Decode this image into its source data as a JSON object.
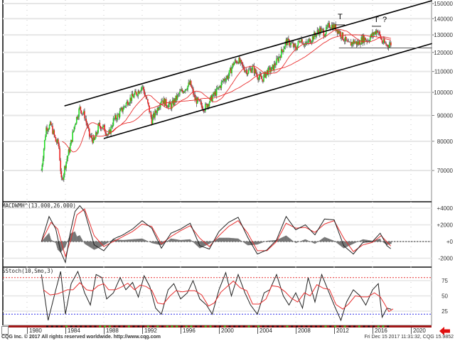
{
  "chart_data": [
    {
      "type": "candlestick",
      "pane": "price",
      "title": "",
      "yscale": "log",
      "y_ticks": [
        150000,
        140000,
        130000,
        120000,
        110000,
        100000,
        90000,
        80000,
        70000
      ],
      "y_tick_labels": [
        "150000",
        "140000",
        "130000",
        "120000",
        "110000",
        "100000",
        "90000",
        "80000",
        "70000"
      ],
      "ylim": [
        62000,
        152000
      ],
      "x_ticks": [
        1980,
        1984,
        1988,
        1992,
        1996,
        2000,
        2004,
        2008,
        2012,
        2016,
        2020
      ],
      "xlim": [
        1977.3,
        2022.2
      ],
      "grid": true,
      "approx_close_series": {
        "x": [
          1981.5,
          1982.0,
          1982.5,
          1983.0,
          1983.3,
          1983.6,
          1984.0,
          1984.5,
          1985.0,
          1985.5,
          1986.0,
          1986.5,
          1987.0,
          1987.5,
          1988.0,
          1988.5,
          1989.0,
          1989.5,
          1990.0,
          1990.5,
          1991.0,
          1991.5,
          1992.0,
          1992.5,
          1993.0,
          1993.5,
          1994.0,
          1994.5,
          1995.0,
          1995.5,
          1996.0,
          1996.5,
          1997.0,
          1997.5,
          1998.0,
          1998.5,
          1999.0,
          1999.5,
          2000.0,
          2000.5,
          2001.0,
          2001.5,
          2002.0,
          2002.5,
          2003.0,
          2003.5,
          2004.0,
          2004.5,
          2005.0,
          2005.5,
          2006.0,
          2006.5,
          2007.0,
          2007.5,
          2008.0,
          2008.5,
          2009.0,
          2009.5,
          2010.0,
          2010.5,
          2011.0,
          2011.5,
          2012.0,
          2012.5,
          2013.0,
          2013.5,
          2014.0,
          2014.5,
          2015.0,
          2015.5,
          2016.0,
          2016.5,
          2017.0,
          2017.5,
          2017.95
        ],
        "values": [
          70000,
          85000,
          86000,
          80000,
          79000,
          66000,
          72000,
          78000,
          87000,
          93000,
          90000,
          82000,
          80000,
          86000,
          85000,
          82000,
          88000,
          90000,
          93000,
          96000,
          98000,
          100000,
          103000,
          96000,
          88000,
          92000,
          97000,
          95000,
          94000,
          97000,
          100000,
          102000,
          104000,
          97000,
          95000,
          93000,
          96000,
          99000,
          102000,
          106000,
          108000,
          114000,
          116000,
          112000,
          110000,
          112000,
          108000,
          106000,
          110000,
          111000,
          115000,
          120000,
          126000,
          125000,
          122000,
          128000,
          124000,
          127000,
          130000,
          133000,
          131000,
          136000,
          135000,
          132000,
          128000,
          124000,
          126000,
          125000,
          128000,
          127000,
          130000,
          133000,
          126000,
          124000,
          125000
        ]
      },
      "moving_averages": [
        {
          "name": "MA short (red)",
          "color": "#e83030"
        },
        {
          "name": "MA long (red)",
          "color": "#e83030"
        }
      ],
      "annotations": [
        {
          "type": "trendline",
          "label": "channel-upper",
          "from": [
            1983.9,
            94000
          ],
          "to": [
            2022.2,
            152000
          ]
        },
        {
          "type": "trendline",
          "label": "channel-lower",
          "from": [
            1988.0,
            81000
          ],
          "to": [
            2022.2,
            125000
          ]
        },
        {
          "type": "hline",
          "label": "support",
          "y": 122500,
          "from_x": 2012.5,
          "to_x": 2022.2
        },
        {
          "type": "text",
          "text": "T",
          "x": 2011.8,
          "y": 147000
        },
        {
          "type": "text",
          "text": "T",
          "x": 2015.9,
          "y": 144000
        },
        {
          "type": "text",
          "text": "?",
          "x": 2017.0,
          "y": 144000
        }
      ]
    },
    {
      "type": "line",
      "pane": "macd",
      "title": "MACDWMH^(13.000,26.000)",
      "y_ticks": [
        4000,
        2000,
        0,
        -2000
      ],
      "y_tick_labels": [
        "+4000",
        "+2000",
        "+0",
        "-2000"
      ],
      "ylim": [
        -3000,
        4600
      ],
      "series": [
        {
          "name": "MACD",
          "color": "#222222",
          "x": [
            1981.5,
            1982.3,
            1983.0,
            1983.5,
            1984.0,
            1984.5,
            1985.0,
            1985.5,
            1986.0,
            1987.0,
            1988.0,
            1989.0,
            1990.0,
            1991.0,
            1992.0,
            1993.0,
            1994.0,
            1995.0,
            1996.0,
            1997.0,
            1998.0,
            1999.0,
            2000.0,
            2001.0,
            2002.0,
            2003.0,
            2004.0,
            2005.0,
            2006.0,
            2007.0,
            2008.0,
            2009.0,
            2010.0,
            2011.0,
            2012.0,
            2013.0,
            2014.0,
            2015.0,
            2016.0,
            2016.8,
            2017.5,
            2017.95
          ],
          "values": [
            0,
            3000,
            1500,
            -1200,
            -2500,
            1000,
            3600,
            4300,
            3600,
            -400,
            -1100,
            300,
            800,
            1500,
            2500,
            1600,
            -800,
            1000,
            1500,
            2200,
            -500,
            -900,
            1200,
            2300,
            2900,
            500,
            -1500,
            -1000,
            200,
            3000,
            1400,
            2000,
            800,
            2700,
            2600,
            -500,
            -1500,
            -100,
            0,
            1000,
            -500,
            -900
          ]
        },
        {
          "name": "Signal",
          "color": "#e83030",
          "x": [
            1981.5,
            1982.5,
            1983.2,
            1984.0,
            1984.6,
            1985.2,
            1986.0,
            1987.0,
            1988.0,
            1989.0,
            1990.0,
            1991.0,
            1992.0,
            1993.0,
            1994.0,
            1995.0,
            1996.0,
            1997.0,
            1998.0,
            1999.0,
            2000.0,
            2001.0,
            2002.0,
            2003.0,
            2004.0,
            2005.0,
            2006.0,
            2007.0,
            2008.0,
            2009.0,
            2010.0,
            2011.0,
            2012.0,
            2013.0,
            2014.0,
            2015.0,
            2016.0,
            2016.9,
            2017.95
          ],
          "values": [
            0,
            2300,
            1500,
            -1800,
            400,
            3200,
            3900,
            700,
            -600,
            0,
            600,
            1200,
            2100,
            1800,
            -300,
            600,
            1300,
            1900,
            400,
            -600,
            700,
            1800,
            2500,
            1000,
            -1100,
            -1100,
            0,
            2200,
            1600,
            1700,
            1100,
            2100,
            2500,
            400,
            -1200,
            -400,
            -100,
            700,
            -600
          ]
        },
        {
          "name": "Histogram",
          "color": "#707070",
          "style": "bar"
        }
      ],
      "zero_line": {
        "y": 0,
        "style": "dashed",
        "color": "#222222"
      }
    },
    {
      "type": "line",
      "pane": "stochastic",
      "title": "SStoch(10,Smo,3)",
      "y_ticks": [
        75,
        50,
        25
      ],
      "y_tick_labels": [
        "75",
        "50",
        "25"
      ],
      "ylim": [
        0,
        100
      ],
      "reference_lines": [
        {
          "y": 80,
          "color": "#e83030",
          "style": "dotted"
        },
        {
          "y": 20,
          "color": "#3030e8",
          "style": "dotted"
        }
      ],
      "series": [
        {
          "name": "%K",
          "color": "#222222",
          "x": [
            1981.5,
            1982.2,
            1983.0,
            1983.5,
            1984.0,
            1984.6,
            1985.3,
            1986.0,
            1986.6,
            1987.2,
            1987.8,
            1988.3,
            1989.0,
            1989.7,
            1990.3,
            1991.0,
            1991.6,
            1992.2,
            1992.8,
            1993.4,
            1994.0,
            1994.7,
            1995.3,
            1996.0,
            1996.7,
            1997.3,
            1998.0,
            1998.7,
            1999.3,
            2000.0,
            2000.7,
            2001.3,
            2002.0,
            2002.7,
            2003.3,
            2004.0,
            2004.7,
            2005.3,
            2006.0,
            2006.7,
            2007.3,
            2008.0,
            2008.7,
            2009.3,
            2010.0,
            2010.7,
            2011.3,
            2012.0,
            2012.7,
            2013.3,
            2014.0,
            2014.7,
            2015.3,
            2016.0,
            2016.6,
            2017.0,
            2017.5,
            2017.95
          ],
          "values": [
            85,
            10,
            60,
            90,
            20,
            70,
            90,
            55,
            35,
            85,
            80,
            45,
            55,
            80,
            60,
            72,
            48,
            83,
            65,
            30,
            20,
            60,
            70,
            45,
            55,
            75,
            45,
            35,
            20,
            60,
            88,
            50,
            85,
            55,
            35,
            20,
            55,
            60,
            85,
            50,
            35,
            55,
            30,
            80,
            40,
            85,
            62,
            35,
            10,
            40,
            60,
            50,
            35,
            60,
            70,
            15,
            30,
            28
          ]
        },
        {
          "name": "%D",
          "color": "#e83030",
          "x": [
            1981.5,
            1983.0,
            1984.0,
            1985.3,
            1986.6,
            1988.0,
            1989.7,
            1991.0,
            1992.2,
            1994.0,
            1995.3,
            1997.3,
            1999.3,
            2000.7,
            2002.0,
            2004.0,
            2006.0,
            2008.0,
            2009.3,
            2010.7,
            2012.7,
            2014.7,
            2016.6,
            2017.2,
            2017.95
          ],
          "values": [
            80,
            55,
            25,
            85,
            45,
            75,
            70,
            65,
            75,
            25,
            65,
            65,
            25,
            80,
            75,
            25,
            80,
            45,
            72,
            80,
            15,
            55,
            65,
            25,
            30
          ]
        }
      ]
    }
  ],
  "panes": {
    "macd_title": "MACDWMH^(13.000,26.000)",
    "stoch_title": "SStoch(10,Smo,3)"
  },
  "price_axis": {
    "labels": [
      "150000",
      "140000",
      "130000",
      "120000",
      "110000",
      "100000",
      "90000",
      "80000",
      "70000"
    ]
  },
  "macd_axis": {
    "labels": [
      "+4000",
      "+2000",
      "+0",
      "-2000"
    ]
  },
  "stoch_axis": {
    "labels": [
      "75",
      "50",
      "25"
    ]
  },
  "time_axis": {
    "labels": [
      "1980",
      "1984",
      "1988",
      "1992",
      "1996",
      "2000",
      "2004",
      "2008",
      "2012",
      "2016",
      "2020"
    ]
  },
  "annotations": {
    "top1": "T",
    "top2": "T",
    "question": "?"
  },
  "footer": {
    "copyright": "CQG Inc. © 2017 All rights reserved worldwide. http://www.cqg.com",
    "timestamp": "Fri Dec 15 2017 11:31:32, CQG 15.9852"
  },
  "colors": {
    "up_bar": "#22dd22",
    "down_bar": "#ee2222",
    "neutral_bar": "#888888",
    "ma": "#e83030",
    "trendline": "#000000",
    "overbought": "#e83030",
    "oversold": "#3030e8",
    "histogram": "#707070",
    "time_bar": "#a01818",
    "back_arrow": "#e01010"
  }
}
